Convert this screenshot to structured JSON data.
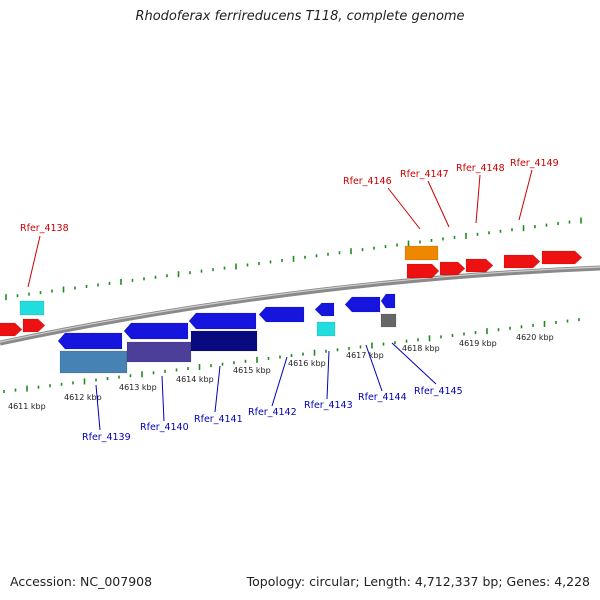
{
  "title": "Rhodoferax ferrireducens T118, complete genome",
  "footer": {
    "accession": "Accession: NC_007908",
    "summary": "Topology: circular; Length: 4,712,337 bp; Genes: 4,228"
  },
  "colors": {
    "forward_label": "#cc0000",
    "reverse_label": "#0000bb",
    "tick": "#228b22",
    "backbone": "#8a8a8a"
  },
  "kbp_labels": [
    "4611 kbp",
    "4612 kbp",
    "4613 kbp",
    "4614 kbp",
    "4615 kbp",
    "4616 kbp",
    "4617 kbp",
    "4618 kbp",
    "4619 kbp",
    "4620 kbp"
  ],
  "forward_gene_labels": [
    "Rfer_4138",
    "Rfer_4146",
    "Rfer_4147",
    "Rfer_4148",
    "Rfer_4149"
  ],
  "reverse_gene_labels": [
    "Rfer_4139",
    "Rfer_4140",
    "Rfer_4141",
    "Rfer_4142",
    "Rfer_4143",
    "Rfer_4144",
    "Rfer_4145"
  ],
  "feature_colors": {
    "cds_forward": "#ee1111",
    "cds_reverse": "#1515dd",
    "cyan": "#22dddd",
    "orange": "#ee8800",
    "gray": "#666666",
    "steelblue": "#4682b4",
    "slate": "#4b3f9a",
    "navy": "#0a0a80"
  }
}
